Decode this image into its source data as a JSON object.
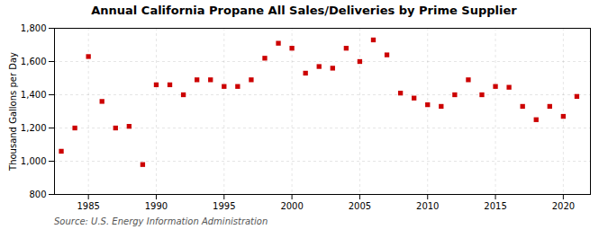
{
  "chart_data": {
    "type": "scatter",
    "title": "Annual California Propane All Sales/Deliveries by Prime Supplier",
    "ylabel": "Thousand Gallons per Day",
    "source": "Source: U.S. Energy Information Administration",
    "x": [
      1983,
      1984,
      1985,
      1986,
      1987,
      1988,
      1989,
      1990,
      1991,
      1992,
      1993,
      1994,
      1995,
      1996,
      1997,
      1998,
      1999,
      2000,
      2001,
      2002,
      2003,
      2004,
      2005,
      2006,
      2007,
      2008,
      2009,
      2010,
      2011,
      2012,
      2013,
      2014,
      2015,
      2016,
      2017,
      2018,
      2019,
      2020,
      2021
    ],
    "values": [
      1060,
      1200,
      1630,
      1360,
      1200,
      1210,
      980,
      1460,
      1460,
      1400,
      1490,
      1490,
      1450,
      1450,
      1490,
      1620,
      1710,
      1680,
      1530,
      1570,
      1560,
      1680,
      1600,
      1730,
      1640,
      1410,
      1380,
      1340,
      1330,
      1400,
      1490,
      1400,
      1450,
      1445,
      1330,
      1250,
      1330,
      1270,
      1390
    ],
    "color": "#cc0000",
    "marker": "square",
    "xlim": [
      1982.5,
      2022
    ],
    "xticks": [
      1985,
      1990,
      1995,
      2000,
      2005,
      2010,
      2015,
      2020
    ],
    "ylim": [
      800,
      1800
    ],
    "yticks": [
      800,
      {
        "value": 1000,
        "label": "1,000"
      },
      {
        "value": 1200,
        "label": "1,200"
      },
      {
        "value": 1400,
        "label": "1,400"
      },
      {
        "value": 1600,
        "label": "1,600"
      },
      {
        "value": 1800,
        "label": "1,800"
      }
    ],
    "grid": true
  }
}
